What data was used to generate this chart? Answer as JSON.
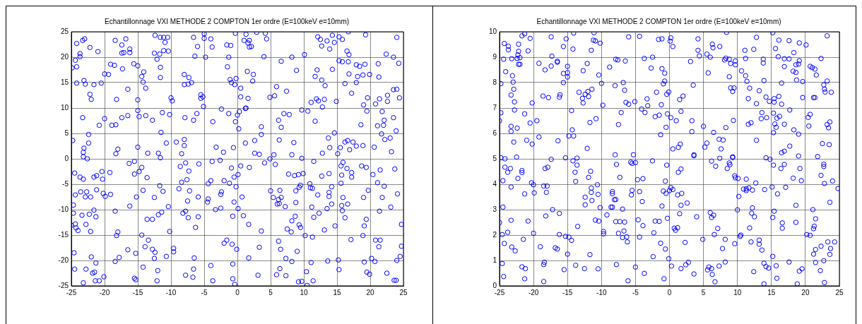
{
  "chart_data": [
    {
      "type": "scatter",
      "title": "Echantillonnage VXI METHODE 2 COMPTON 1er ordre (E=100keV e=10mm)",
      "color": "#0000ff",
      "marker": "circle",
      "grid": true,
      "legend": false,
      "xlim": [
        -25,
        25
      ],
      "xticks": [
        -25,
        -20,
        -15,
        -10,
        -5,
        0,
        5,
        10,
        15,
        20,
        25
      ],
      "ylim": [
        -25,
        25
      ],
      "yticks": [
        -25,
        -20,
        -15,
        -10,
        -5,
        0,
        5,
        10,
        15,
        20,
        25
      ],
      "x": [
        -24.9,
        -24.8,
        -24.4,
        -24.2,
        -24.2,
        -24.2,
        -23.7,
        -23.7,
        -23.3,
        -23,
        -23.1,
        -22.9,
        -23.3,
        -22.2,
        -22.2,
        -22,
        -22.4,
        -22.4,
        -23.1,
        -23.2,
        -21.6,
        -21,
        -20.5,
        -20.8,
        -20,
        -20,
        -19.4,
        -19.1,
        -18.5,
        -18.4,
        -18.2,
        -18.9,
        -18.3,
        -18,
        -18.3,
        -17.4,
        -16.8,
        -17.4,
        -17.1,
        -16.2,
        -16.2,
        -17.3,
        -16.5,
        -17.4,
        -16.5,
        -15.6,
        -15,
        -15,
        -15,
        -14.8,
        -15,
        -14.4,
        -14.1,
        -14.2,
        -13.8,
        -13.8,
        -12.8,
        -13.5,
        -12.4,
        -12.5,
        -12.1,
        -11.7,
        -11.6,
        -11.1,
        -10.5,
        -10.9,
        -11.1,
        -10.4,
        -11.6,
        -11.6,
        -11.3,
        -11.5,
        -10.7,
        -10.2,
        -11.9,
        -10,
        -9.8,
        -9.2,
        -8,
        -7.3,
        -8,
        -7.4,
        -6.9,
        -7.9,
        -8,
        -8,
        -8.4,
        -6.6,
        -6,
        -6.4,
        -5.5,
        -5.5,
        -5.2,
        -5.1,
        -6.6,
        -6.1,
        -5,
        -5,
        -4.8,
        -4,
        -3.8,
        -3.7,
        -3.2,
        -2.1,
        -2.4,
        -1.3,
        -1.6,
        -1,
        -1.3,
        -1.5,
        -1.1,
        -0.9,
        -0.4,
        -0.2,
        -0.3,
        -0.3,
        -0.6,
        0.2,
        0,
        0.3,
        0.5,
        0.5,
        1.6,
        1.2,
        1.3,
        1.2,
        1,
        1.3,
        1.6,
        1.8,
        1.8,
        2.1,
        1.5,
        2.4,
        2.3,
        2.9,
        4.2,
        4.4,
        4,
        3.6,
        3.6,
        2.6,
        2.6,
        3.3,
        4.9,
        5.6,
        5.9,
        7.4,
        6.2,
        6.6,
        6.3,
        7,
        7.8,
        6.6,
        8.2,
        8.9,
        10.1,
        8.5,
        8.2,
        5.5,
        9.7,
        10.6,
        11.1,
        12.1,
        12.5,
        12.7,
        13.5,
        13.9,
        14.3,
        14.6,
        11.7,
        12,
        12.7,
        13.2,
        14.3,
        11.9,
        12.2,
        13.1,
        12.8,
        11.7,
        13.7,
        13.9,
        12.8,
        14.6,
        14.9,
        15.1,
        15.3,
        15.8,
        16.7,
        19.3,
        15.3,
        15.8,
        16.5,
        16.8,
        16.7,
        16.2,
        16.8,
        17.2,
        17.9,
        18.4,
        19.2,
        18.9,
        18.1,
        17.9,
        19.6,
        19,
        19.5,
        18.6,
        15.5,
        16.2,
        16.6,
        17.4,
        17.9,
        18.9,
        16.9,
        19.9,
        22.4,
        23.5,
        24,
        24.3,
        21.2,
        21.3,
        20.8,
        21.4,
        22.6,
        22.6,
        23.5,
        24,
        24.4,
        21.8,
        22.1,
        22,
        21.1,
        23.5,
        21.7,
        22.2,
        23,
        23.9,
        23.2,
        20.6,
        -24.5,
        -24.4,
        -24.7,
        -24.7,
        -25,
        -24.4,
        -24.3,
        -24,
        -24.6,
        -24.5,
        -23.7,
        -23.2,
        -23.6,
        -23.4,
        -22.9,
        -22.7,
        -22.8,
        -22.1,
        -22.1,
        -22.3,
        -21.6,
        -21.3,
        -21.6,
        -21.2,
        -21.2,
        -22,
        -22.8,
        -21.8,
        -21.5,
        -21.3,
        -21.4,
        -20.8,
        -23.2,
        -20.4,
        -20.3,
        -20.2,
        -19.9,
        -19.1,
        -19.2,
        -20.1,
        -18.4,
        -18.2,
        -18,
        -17.8,
        -18.4,
        -16.3,
        -15.5,
        -15.5,
        -16.2,
        -15.3,
        -16.5,
        -15.5,
        -15.3,
        -14.8,
        -14.4,
        -15.2,
        -14.2,
        -13.6,
        -14.4,
        -13.4,
        -13.9,
        -14.2,
        -13.6,
        -12.8,
        -12.5,
        -11.7,
        -11.2,
        -11.9,
        -11.4,
        -10.4,
        -10.2,
        -12.8,
        -12.4,
        -12.5,
        -12,
        -12.1,
        -10.7,
        -9.6,
        -9.6,
        -11.6,
        -8.6,
        -7.8,
        -8.4,
        -7.6,
        -7.3,
        -8.8,
        -7.2,
        -5.8,
        -5.9,
        -7.5,
        -8.2,
        -7.8,
        -7.4,
        -5.9,
        -6.3,
        -6.5,
        -6.6,
        -7.8,
        -6.7,
        -3.8,
        -2.6,
        -4.4,
        -4,
        -4.4,
        -4.5,
        -3.3,
        -2.5,
        -2.4,
        -2.5,
        -2,
        -1.2,
        -0.9,
        -0.5,
        0.1,
        -0.2,
        0.5,
        1.8,
        -0.5,
        0.1,
        0.7,
        -0.7,
        0.9,
        1.7,
        -2,
        -1.6,
        -0.8,
        -0.1,
        1.7,
        -4,
        -3.7,
        -0.7,
        -0.7,
        -0.4,
        3.1,
        3.3,
        3.6,
        4.1,
        4.9,
        5.7,
        5,
        5.4,
        6,
        6.3,
        6.6,
        6.4,
        6.2,
        7.2,
        7.7,
        8.6,
        9.2,
        9.9,
        8.8,
        8.8,
        9.3,
        9.5,
        9.7,
        11.5,
        10.9,
        11,
        11.3,
        12.1,
        11.2,
        11.5,
        12.3,
        12.7,
        13.8,
        14.2,
        13.8,
        13.8,
        14.2,
        13.5,
        7.5,
        8.1,
        8.2,
        8.7,
        9.3,
        9.5,
        10.2,
        11.3,
        13.1,
        14.7,
        6.2,
        6.5,
        9,
        7.3,
        8.2,
        6.4,
        5.9,
        7.3,
        10.4,
        11.1,
        9.2,
        9.7,
        10.5,
        11.4,
        13.6,
        15.2,
        15.3,
        15.6,
        15.9,
        15.7,
        16.5,
        15.6,
        15.9,
        16.6,
        15.7,
        15.8,
        16.2,
        17.2,
        17.2,
        18.7,
        19.4,
        19,
        19.7,
        20.4,
        19.1,
        19.4,
        17.1,
        18.9,
        21.1,
        21.5,
        22.1,
        21.8,
        21.4,
        23.1,
        23.7,
        24.1,
        20.8,
        21.5,
        21.3,
        24.7,
        24.7,
        19.1,
        20.2,
        20.7,
        19.5,
        19.9,
        22.5,
        24,
        24.5,
        23.6,
        23.9,
        -22.6,
        -23.2
      ],
      "values": [
        17.9,
        3.6,
        19.4,
        18.1,
        22.7,
        14.9,
        20.1,
        20.7,
        23.3,
        23.6,
        15.4,
        14.7,
        8.1,
        21.9,
        12.7,
        11.7,
        4.8,
        3.1,
        2.1,
        1.3,
        14.6,
        21.1,
        14.9,
        6.6,
        7.9,
        16.7,
        16.6,
        18.6,
        18.4,
        23.3,
        11.7,
        6.6,
        6.7,
        1.9,
        1,
        22.4,
        23.6,
        20.8,
        20.9,
        21.6,
        20.9,
        17.7,
        13.7,
        8.1,
        8.5,
        18.7,
        18.3,
        11.6,
        9.5,
        8.3,
        2.3,
        16.2,
        17.1,
        15.1,
        13.9,
        8.5,
        7.6,
        1.1,
        24.3,
        20.8,
        19.6,
        20.6,
        23.9,
        23.9,
        23.9,
        22.9,
        21.3,
        21.2,
        18,
        16,
        9.1,
        5.2,
        3.1,
        8.7,
        1.1,
        12,
        11.4,
        3.3,
        16.6,
        16,
        14.6,
        14.7,
        15,
        8.1,
        3.8,
        2.6,
        1,
        23.9,
        22.1,
        20.2,
        12.6,
        11.9,
        12.2,
        10.3,
        7.6,
        8.9,
        24.6,
        23.7,
        20,
        23.6,
        22,
        7.3,
        2.3,
        1.3,
        9.8,
        8.9,
        22.4,
        22.3,
        20,
        18.1,
        15.6,
        15,
        14.6,
        15.8,
        24.7,
        7.3,
        2.2,
        5.9,
        8.6,
        9.3,
        13.9,
        12.2,
        11.9,
        9.9,
        10,
        3.1,
        23.3,
        24.5,
        22.8,
        23.3,
        22,
        22.1,
        17.2,
        16.6,
        15.3,
        24.9,
        24.7,
        23.6,
        20.1,
        6.3,
        4.8,
        3.6,
        1.1,
        0.9,
        12.1,
        12.4,
        14.2,
        13.3,
        7.6,
        6.2,
        3.7,
        8.9,
        8.7,
        19.2,
        20,
        17.4,
        20.5,
        3.2,
        0.8,
        0.8,
        9.6,
        9.4,
        11.1,
        24,
        23.5,
        22.2,
        23.2,
        21.6,
        24.3,
        22.9,
        16.2,
        17.5,
        15.5,
        14.4,
        17.6,
        11.8,
        11.4,
        11.7,
        10.2,
        7.4,
        4.1,
        2.2,
        1.1,
        5.1,
        11.3,
        1,
        24,
        23.5,
        25,
        24.4,
        19.3,
        19.1,
        21.2,
        20.5,
        19.1,
        14.8,
        16.7,
        12.9,
        18.5,
        18.2,
        18.6,
        16.5,
        16.2,
        15,
        12,
        10.6,
        9.4,
        6.7,
        2.2,
        3.3,
        3.6,
        3.3,
        2.5,
        2.6,
        1.8,
        16.6,
        20.6,
        20,
        23.9,
        18.8,
        18.7,
        16.1,
        10.8,
        11.8,
        11.3,
        12.5,
        13.6,
        13.7,
        12,
        9.3,
        7.6,
        6.6,
        6.5,
        8.1,
        4.9,
        3.8,
        4.1,
        5.5,
        1.4,
        2.3,
        -2.8,
        -7.1,
        -9.1,
        -10.7,
        -13.1,
        -12.8,
        -13.6,
        -14.1,
        -18.5,
        -21.7,
        -3.6,
        -4,
        -6.5,
        -11.1,
        -7.5,
        -6.5,
        -12.9,
        -7.5,
        -14.3,
        -10.9,
        -10.1,
        -11.4,
        -3.6,
        -3.3,
        -6.1,
        -19.3,
        -21.7,
        -22.5,
        -22.3,
        -20.5,
        -24,
        -24,
        -24.4,
        -2.5,
        -4,
        -6.8,
        -7.4,
        -7,
        -2.7,
        -23.2,
        -10.3,
        -15.1,
        -14.4,
        -19.4,
        -20.2,
        -0.9,
        -0.5,
        -3,
        -9.3,
        -18.6,
        -17.9,
        -23.5,
        -23.8,
        -2.5,
        -1.7,
        -7.5,
        -6.2,
        -3.7,
        -15,
        -16,
        -17.3,
        -21.3,
        -11.9,
        -11.9,
        -7.6,
        -5.3,
        -6.4,
        -11,
        -10.5,
        -9.4,
        -14.3,
        -17.8,
        -18.4,
        -19.6,
        -22,
        -24,
        -19.2,
        -17.6,
        -18.3,
        0.2,
        -1.5,
        -0.8,
        -4.6,
        -4.1,
        -2.4,
        -5.9,
        -6.3,
        -1,
        -7.5,
        -8.3,
        -10.7,
        -10.3,
        -11.6,
        -11.4,
        -13.5,
        -19.5,
        -21.7,
        -22.9,
        -23.3,
        -0.5,
        -0.3,
        -4.9,
        -4.3,
        -7.9,
        -8.5,
        -10,
        -9.7,
        -6.5,
        -7,
        -4.3,
        -4.8,
        -1.8,
        -3.6,
        -3.1,
        -5.5,
        -1.4,
        -1.7,
        -8.5,
        -9.8,
        -7.5,
        -11.3,
        -11.2,
        -12.9,
        -16.6,
        -16,
        -16.8,
        -17.8,
        -19.5,
        -21,
        -24,
        -20.7,
        -23.6,
        -24.7,
        -22.9,
        -17.4,
        -14.2,
        -0.8,
        0,
        -1.1,
        -6.3,
        -7.6,
        -8.9,
        -8.8,
        -7.6,
        -6.2,
        -8,
        -9.4,
        -3,
        -3.3,
        -3.1,
        -2.9,
        -6.3,
        -8.6,
        -5.6,
        -5.2,
        0.1,
        -0.5,
        -4.9,
        -5.7,
        -5.8,
        -7.1,
        -9.5,
        -11.5,
        -10.7,
        -3.4,
        -2.9,
        -5.5,
        -6.6,
        -7.4,
        -8.9,
        -9.8,
        -13.8,
        -14.4,
        -12.2,
        -11.3,
        -13,
        -13.5,
        -15.1,
        -15.4,
        -14,
        -13.2,
        -16.2,
        -17.8,
        -18.2,
        -19.6,
        -20.2,
        -21.6,
        -22.8,
        -23,
        -22.2,
        -20.4,
        -24.2,
        -24.1,
        -24.9,
        -24,
        -20.1,
        -19.9,
        -21.8,
        -1.4,
        -0.7,
        -3.2,
        -1.9,
        -4.8,
        -7.6,
        -8.9,
        -9.2,
        -10.2,
        -11.6,
        -2.7,
        -3.6,
        -1.4,
        -1.7,
        -7.6,
        -6.2,
        -3.1,
        -13.2,
        -11.9,
        -15.9,
        -15.1,
        -4.7,
        -2.2,
        -5.4,
        -7.6,
        -10.3,
        -9.5,
        -2,
        -6.9,
        -16,
        -16,
        -17.3,
        -12.9,
        -17.2,
        -20.3,
        -19.6,
        -20.2,
        -22.3,
        -22.7,
        -22.5,
        -20,
        -19.2,
        -23.9,
        -23.9,
        0,
        0.4
      ]
    },
    {
      "type": "scatter",
      "title": "Echantillonnage VXI METHODE 2 COMPTON 1er ordre (E=100keV e=10mm)",
      "color": "#0000ff",
      "marker": "circle",
      "grid": true,
      "legend": false,
      "xlim": [
        -25,
        25
      ],
      "xticks": [
        -25,
        -20,
        -15,
        -10,
        -5,
        0,
        5,
        10,
        15,
        20,
        25
      ],
      "ylim": [
        0,
        10
      ],
      "yticks": [
        0,
        1,
        2,
        3,
        4,
        5,
        6,
        7,
        8,
        9,
        10
      ],
      "x": [
        -24.3,
        -23.7,
        -23.7,
        -24.4,
        -23.2,
        -22.2,
        -22.2,
        -22.3,
        -22.4,
        -22,
        -22.2,
        -22,
        -21.7,
        -21.3,
        -20.5,
        -20.8,
        -24.1,
        -23.1,
        -23,
        -24.8,
        -22.9,
        -23.3,
        -22.8,
        -22.8,
        -24.8,
        -25,
        -23.3,
        -23.3,
        -22.4,
        -22.9,
        -20.2,
        -21.3,
        -20.5,
        -21,
        -20.2,
        -19.2,
        -19.5,
        -19.2,
        -18.3,
        -17.4,
        -17.3,
        -17.4,
        -16.5,
        -16.5,
        -18.6,
        -17.8,
        -16.1,
        -16.2,
        -16.4,
        -15.6,
        -15.2,
        -14.1,
        -14.2,
        -15,
        -15.6,
        -15,
        -15,
        -15.6,
        -14.4,
        -14.3,
        -14.8,
        -14.1,
        -12.7,
        -12.1,
        -11.5,
        -11.1,
        -11.2,
        -10.9,
        -10.2,
        -10.4,
        -10,
        -13.3,
        -12.8,
        -12.4,
        -12,
        -11.4,
        -12.7,
        -11.9,
        -11.7,
        -10.8,
        -12.1,
        -9.8,
        -8.8,
        -7.9,
        -7.6,
        -6.5,
        -6,
        -4.4,
        -8,
        -6.8,
        -6.6,
        -6.4,
        -6,
        -5.1,
        -7.1,
        -7.5,
        -8,
        -5.3,
        -3.7,
        -2.5,
        -2.7,
        -1.6,
        -1.1,
        0.1,
        0.2,
        0.5,
        -1.1,
        -0.7,
        -0.7,
        -0.9,
        -1.9,
        -3.3,
        -3.2,
        -1.2,
        -0.1,
        -0.4,
        -4.1,
        -3.6,
        -2.1,
        -1.5,
        -0.3,
        0.2,
        1,
        -0.5,
        -1.3,
        1.5,
        2,
        1.7,
        0.5,
        1.3,
        1.6,
        3.1,
        3.5,
        4.2,
        4.2,
        4.4,
        3.6,
        3.3,
        3.3,
        5,
        5.2,
        5.5,
        6.5,
        5.5,
        6,
        6.3,
        6.4,
        7.4,
        8.4,
        5.7,
        8.1,
        8.3,
        8.8,
        9,
        9.7,
        9.7,
        8.8,
        9,
        9.5,
        9.3,
        9.4,
        8.3,
        7.3,
        7.9,
        7.6,
        9.3,
        10.6,
        11.2,
        11.4,
        11.2,
        11.1,
        12.4,
        12.8,
        11.8,
        11.6,
        12.8,
        13.2,
        13.8,
        13.8,
        13.9,
        14.2,
        14.7,
        11.6,
        12,
        12.8,
        13.6,
        13.5,
        14.3,
        15.2,
        15.6,
        16.1,
        16,
        17.6,
        18.3,
        19.1,
        20.1,
        16.9,
        17.6,
        16.9,
        16.5,
        18.6,
        19,
        19.1,
        18.2,
        18.6,
        18.7,
        19.6,
        15.4,
        16.1,
        16.5,
        15.4,
        15.3,
        15.8,
        16.2,
        15.5,
        15.7,
        15.3,
        16.9,
        17.7,
        18.3,
        19,
        17.7,
        16.5,
        16.9,
        19.6,
        20.4,
        20.7,
        20.5,
        20.7,
        21,
        21.4,
        21.6,
        21.2,
        21.4,
        22.3,
        22.7,
        22.8,
        22.9,
        23.2,
        23.2,
        23.8,
        23.2,
        23.4,
        23.6,
        22.5,
        23.5,
        -24.8,
        -24.2,
        -24.2,
        -23.8,
        -23.4,
        -24.5,
        -23.3,
        -24.5,
        -22.5,
        -22.3,
        -21.7,
        -21.7,
        -21.3,
        -20.3,
        -20,
        -19.9,
        -25,
        -24.6,
        -23.8,
        -23.3,
        -24.3,
        -23.2,
        -22.7,
        -20.8,
        -21.5,
        -20,
        -24.6,
        -24.4,
        -21.7,
        -21.2,
        -21.3,
        -18.3,
        -17.9,
        -17.4,
        -18.5,
        -18,
        -18.1,
        -17.2,
        -18.2,
        -16.2,
        -19,
        -18.4,
        -18.5,
        -18.5,
        -16.8,
        -16.5,
        -16.2,
        -15.3,
        -14.2,
        -13.6,
        -13.6,
        -13.9,
        -13.8,
        -15.3,
        -14.8,
        -14.4,
        -15,
        -15.5,
        -13.8,
        -13.5,
        -11.9,
        -11.6,
        -12.4,
        -12.4,
        -11.5,
        -11.5,
        -11.4,
        -10.6,
        -10.5,
        -10.2,
        -10.9,
        -10.4,
        -11.7,
        -12.5,
        -10.5,
        -9.7,
        -9.7,
        -9.2,
        -8.6,
        -8.4,
        -8.4,
        -8.4,
        -8.1,
        -7.9,
        -7.8,
        -7.3,
        -7.9,
        -7.3,
        -6.6,
        -6.9,
        -7.5,
        -6.7,
        -6.9,
        -6.3,
        -6.2,
        -7.8,
        -6.1,
        -5,
        -3.7,
        -5.7,
        -5.5,
        -5,
        -5.5,
        -5.6,
        -4.7,
        -3.9,
        -4.4,
        -4,
        -4.6,
        -3.9,
        -4.4,
        -2.3,
        -2.5,
        -0.4,
        -0.6,
        -0.9,
        -0.5,
        0,
        0.2,
        0.5,
        1.2,
        1.8,
        1.7,
        2.6,
        -1.1,
        -2.1,
        -1.5,
        -0.3,
        1.5,
        0.7,
        0.9,
        1.2,
        2.3,
        4,
        -1.3,
        -0.6,
        -2.4,
        -0.1,
        0.3,
        -0.8,
        1.7,
        2.4,
        2.8,
        3.6,
        1.3,
        1.7,
        3.6,
        4.9,
        5.6,
        5.8,
        6.2,
        6.3,
        6.7,
        7.3,
        8.2,
        7.8,
        8.2,
        6,
        6.2,
        6.5,
        6.6,
        7.1,
        6.2,
        6.8,
        7.4,
        8.5,
        8.8,
        8.9,
        9.3,
        9.6,
        9.7,
        10.1,
        11.3,
        12.7,
        10.2,
        10.9,
        11.3,
        11.3,
        11.7,
        12.2,
        14,
        15.1,
        15.9,
        17.1,
        10,
        12.2,
        12.1,
        12.5,
        11.8,
        15.4,
        15.2,
        9.6,
        10.4,
        10.5,
        12,
        13.2,
        13.2,
        13.6,
        12.4,
        13.9,
        14.2,
        14.6,
        13.9,
        15.2,
        15.7,
        15.8,
        14.2,
        14.8,
        15.3,
        16.4,
        16.9,
        18.2,
        19.2,
        19.4,
        19,
        16.6,
        16.6,
        18.6,
        18.6,
        17.6,
        18.8,
        19.1,
        19.5,
        20.2,
        20.7,
        21.1,
        21.5,
        21.3,
        21.2,
        21.5,
        21.2,
        21.5,
        22.2,
        22.3,
        22.7,
        22.7,
        22.8,
        23.3,
        22.3,
        22.7,
        22.8,
        23.6,
        24,
        24.8,
        23.7,
        23.6,
        24.3,
        21.8
      ],
      "values": [
        9.54,
        9.43,
        9.29,
        8.92,
        8.94,
        9.51,
        9.23,
        9.09,
        8.95,
        8.98,
        8.72,
        8.72,
        9.84,
        9.92,
        9.74,
        9.25,
        8.43,
        8.27,
        8.02,
        7.96,
        7.74,
        7.51,
        7.24,
        6.92,
        6.81,
        6.5,
        6.28,
        6.08,
        6.21,
        5.66,
        7.2,
        6.77,
        6.41,
        5.73,
        5.58,
        5.86,
        6.5,
        8.76,
        8.5,
        9.8,
        9.04,
        8.65,
        8.84,
        8.8,
        7.47,
        7.41,
        7.52,
        7.43,
        5.71,
        9.42,
        9.72,
        9.95,
        9.32,
        8.64,
        8.36,
        8.39,
        8.22,
        8,
        6.9,
        6.14,
        5.9,
        5.9,
        8.47,
        8.75,
        9.27,
        9.96,
        9.67,
        9.64,
        9.55,
        8.3,
        7.97,
        7.62,
        7.38,
        7.54,
        7.65,
        7.74,
        7.2,
        7.45,
        6.43,
        6.58,
        5.41,
        7.11,
        8.61,
        8.92,
        8.89,
        8.85,
        9.8,
        9.82,
        7.88,
        8,
        7.7,
        7.22,
        7.15,
        7.25,
        6.82,
        6.35,
        5.16,
        5.16,
        8.95,
        9,
        8.57,
        9.7,
        9.72,
        9.63,
        9.76,
        9.42,
        8.55,
        8.37,
        8.06,
        7.95,
        7.62,
        7.36,
        7.09,
        7.13,
        7.63,
        7.54,
        6.96,
        6.82,
        6.66,
        6.72,
        6.77,
        6.62,
        6.5,
        6.24,
        5.95,
        7.33,
        7.47,
        6.87,
        5.39,
        5.45,
        5.58,
        8.83,
        7.9,
        9.72,
        9.27,
        9.05,
        5.16,
        6.5,
        6.07,
        6.28,
        5.46,
        5.62,
        6.04,
        9.12,
        9,
        9.51,
        9.37,
        9.42,
        9.98,
        8.38,
        8.89,
        8.96,
        8.92,
        8.75,
        8.85,
        8.7,
        8.23,
        7.79,
        7.79,
        7.65,
        6.51,
        6.23,
        5.77,
        5.74,
        5.39,
        5.08,
        8.46,
        8.27,
        8.05,
        8.95,
        9.27,
        9.31,
        9.78,
        7.78,
        7.37,
        7.17,
        7.68,
        8.92,
        8.77,
        8.08,
        7.43,
        7.26,
        6.36,
        6.42,
        5.73,
        6.82,
        6.58,
        6.62,
        9.96,
        9.34,
        9.67,
        9.02,
        9.65,
        9.18,
        9.56,
        9.48,
        8.94,
        8.93,
        8.63,
        7.98,
        8.7,
        8.73,
        8.86,
        8.45,
        8.4,
        8.1,
        8.04,
        7.37,
        7.46,
        7.15,
        7.23,
        6.8,
        6.6,
        6.67,
        6.37,
        6.24,
        6.03,
        6.36,
        6.92,
        6.14,
        5.97,
        5.5,
        5.24,
        5.3,
        7.41,
        6.63,
        6.75,
        6.29,
        8.64,
        8.59,
        8.53,
        8.3,
        7.41,
        7.41,
        8.95,
        7.91,
        7.74,
        7.63,
        8.06,
        9.84,
        7.62,
        6.35,
        6.22,
        6.45,
        5.6,
        5.56,
        5.04,
        5,
        4.67,
        4.47,
        4.62,
        4.14,
        3.89,
        3.1,
        5.07,
        4.23,
        4.54,
        4.46,
        3.62,
        4.06,
        3.98,
        3.66,
        2.49,
        2.02,
        2.11,
        2.58,
        1.67,
        1.53,
        1.38,
        2.55,
        1.83,
        2.07,
        0.88,
        0.37,
        0.75,
        0.68,
        0.28,
        4.62,
        4.67,
        4.98,
        3.93,
        3.93,
        3.68,
        3,
        2.75,
        2.85,
        1.54,
        0.93,
        0.84,
        0.17,
        1.5,
        1.45,
        2.02,
        5.04,
        4.92,
        5.03,
        4.75,
        4.47,
        4.11,
        1.95,
        1.92,
        1.79,
        1.25,
        0.64,
        0.81,
        2.34,
        4.27,
        4.51,
        3.49,
        3.19,
        3.85,
        3.68,
        3.36,
        3.98,
        3.6,
        3.08,
        2.59,
        2.55,
        1.23,
        0.68,
        0.67,
        2.14,
        2.05,
        2.79,
        3.1,
        3.1,
        3.71,
        3.63,
        3.39,
        3.4,
        4.78,
        4.27,
        2.53,
        2.53,
        2.51,
        3.02,
        2.07,
        2.16,
        1.9,
        1.93,
        1.73,
        0.84,
        0.2,
        0.74,
        0.49,
        4.87,
        4.82,
        4.85,
        3.76,
        3.58,
        4.18,
        4.22,
        3.71,
        3.32,
        2.6,
        2.37,
        1.92,
        2.09,
        4.92,
        4.75,
        4.12,
        3.73,
        3.64,
        3.75,
        3.87,
        3.79,
        3.58,
        3.64,
        3.17,
        3.26,
        3.14,
        2.55,
        2.54,
        2.66,
        2.84,
        2.27,
        2.19,
        2.29,
        1.71,
        2.72,
        1.68,
        1.45,
        1.15,
        1.07,
        0.78,
        0.28,
        0.68,
        0.83,
        0.93,
        0.47,
        4.47,
        4.6,
        5.12,
        1.83,
        0.63,
        0.74,
        0.68,
        0.45,
        0.16,
        0.78,
        0.94,
        1.47,
        1.83,
        2.88,
        2.69,
        2.78,
        2.02,
        2.26,
        4.91,
        4.71,
        5.02,
        4.62,
        4.84,
        4.77,
        5.05,
        4.33,
        4.25,
        4.23,
        4.2,
        4.05,
        3.52,
        3.81,
        3.82,
        3.75,
        3.86,
        3.77,
        3.79,
        3.89,
        3.62,
        3.88,
        2.99,
        3.07,
        2.86,
        2.72,
        2.28,
        2.94,
        2.69,
        1.66,
        1.95,
        2,
        1.73,
        1.8,
        1.64,
        1.41,
        0.56,
        0.89,
        0.76,
        0.7,
        0.08,
        1.16,
        0.79,
        0.3,
        5.04,
        4.98,
        4.75,
        4.62,
        4.78,
        4.24,
        4.62,
        4.14,
        5.11,
        2.48,
        2.27,
        3.17,
        2.5,
        0.94,
        0.08,
        0.58,
        0.67,
        2.02,
        1.99,
        3,
        2.64,
        2.35,
        2.25,
        1.43,
        1.25,
        0.92,
        0.6,
        4.35,
        4.79,
        4.7,
        4.03,
        1.73,
        1.56,
        0.99,
        0.13,
        3.29,
        4.13,
        3.83,
        1.47,
        1.24,
        1.73,
        5.09
      ]
    }
  ]
}
